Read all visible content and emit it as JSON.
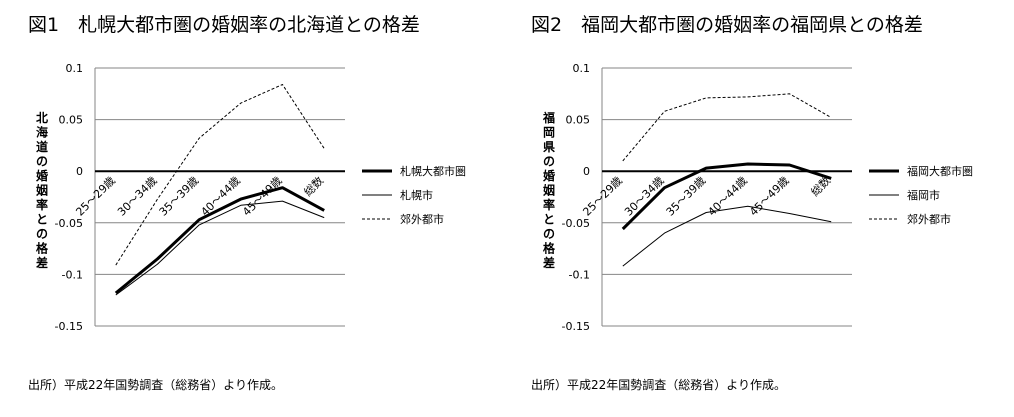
{
  "chart_data": [
    {
      "type": "line",
      "title": "図1　札幌大都市圏の婚姻率の北海道との格差",
      "ylabel": "北海道の婚姻率との格差",
      "xlabel": "",
      "categories": [
        "25～29歳",
        "30～34歳",
        "35～39歳",
        "40～44歳",
        "45～49歳",
        "総数"
      ],
      "ylim": [
        -0.15,
        0.1
      ],
      "yticks": [
        "0.1",
        "0.05",
        "0",
        "-0.05",
        "-0.1",
        "-0.15"
      ],
      "grid": "horizontal",
      "legend_position": "right",
      "source": "出所）平成22年国勢調査（総務省）より作成。",
      "series": [
        {
          "name": "札幌大都市圏",
          "style": "thick",
          "values": [
            -0.118,
            -0.085,
            -0.047,
            -0.027,
            -0.016,
            -0.038
          ]
        },
        {
          "name": "札幌市",
          "style": "thin",
          "values": [
            -0.12,
            -0.09,
            -0.052,
            -0.033,
            -0.029,
            -0.045
          ]
        },
        {
          "name": "郊外都市",
          "style": "dashed",
          "values": [
            -0.091,
            -0.027,
            0.032,
            0.066,
            0.084,
            0.022
          ]
        }
      ]
    },
    {
      "type": "line",
      "title": "図2　福岡大都市圏の婚姻率の福岡県との格差",
      "ylabel": "福岡県の婚姻率との格差",
      "xlabel": "",
      "categories": [
        "25～29歳",
        "30～34歳",
        "35～39歳",
        "40～44歳",
        "45～49歳",
        "総数"
      ],
      "ylim": [
        -0.15,
        0.1
      ],
      "yticks": [
        "0.1",
        "0.05",
        "0",
        "-0.05",
        "-0.1",
        "-0.15"
      ],
      "grid": "horizontal",
      "legend_position": "right",
      "source": "出所）平成22年国勢調査（総務省）より作成。",
      "series": [
        {
          "name": "福岡大都市圏",
          "style": "thick",
          "values": [
            -0.056,
            -0.016,
            0.003,
            0.007,
            0.006,
            -0.007
          ]
        },
        {
          "name": "福岡市",
          "style": "thin",
          "values": [
            -0.092,
            -0.06,
            -0.04,
            -0.034,
            -0.041,
            -0.049
          ]
        },
        {
          "name": "郊外都市",
          "style": "dashed",
          "values": [
            0.01,
            0.058,
            0.071,
            0.072,
            0.075,
            0.052
          ]
        }
      ]
    }
  ]
}
